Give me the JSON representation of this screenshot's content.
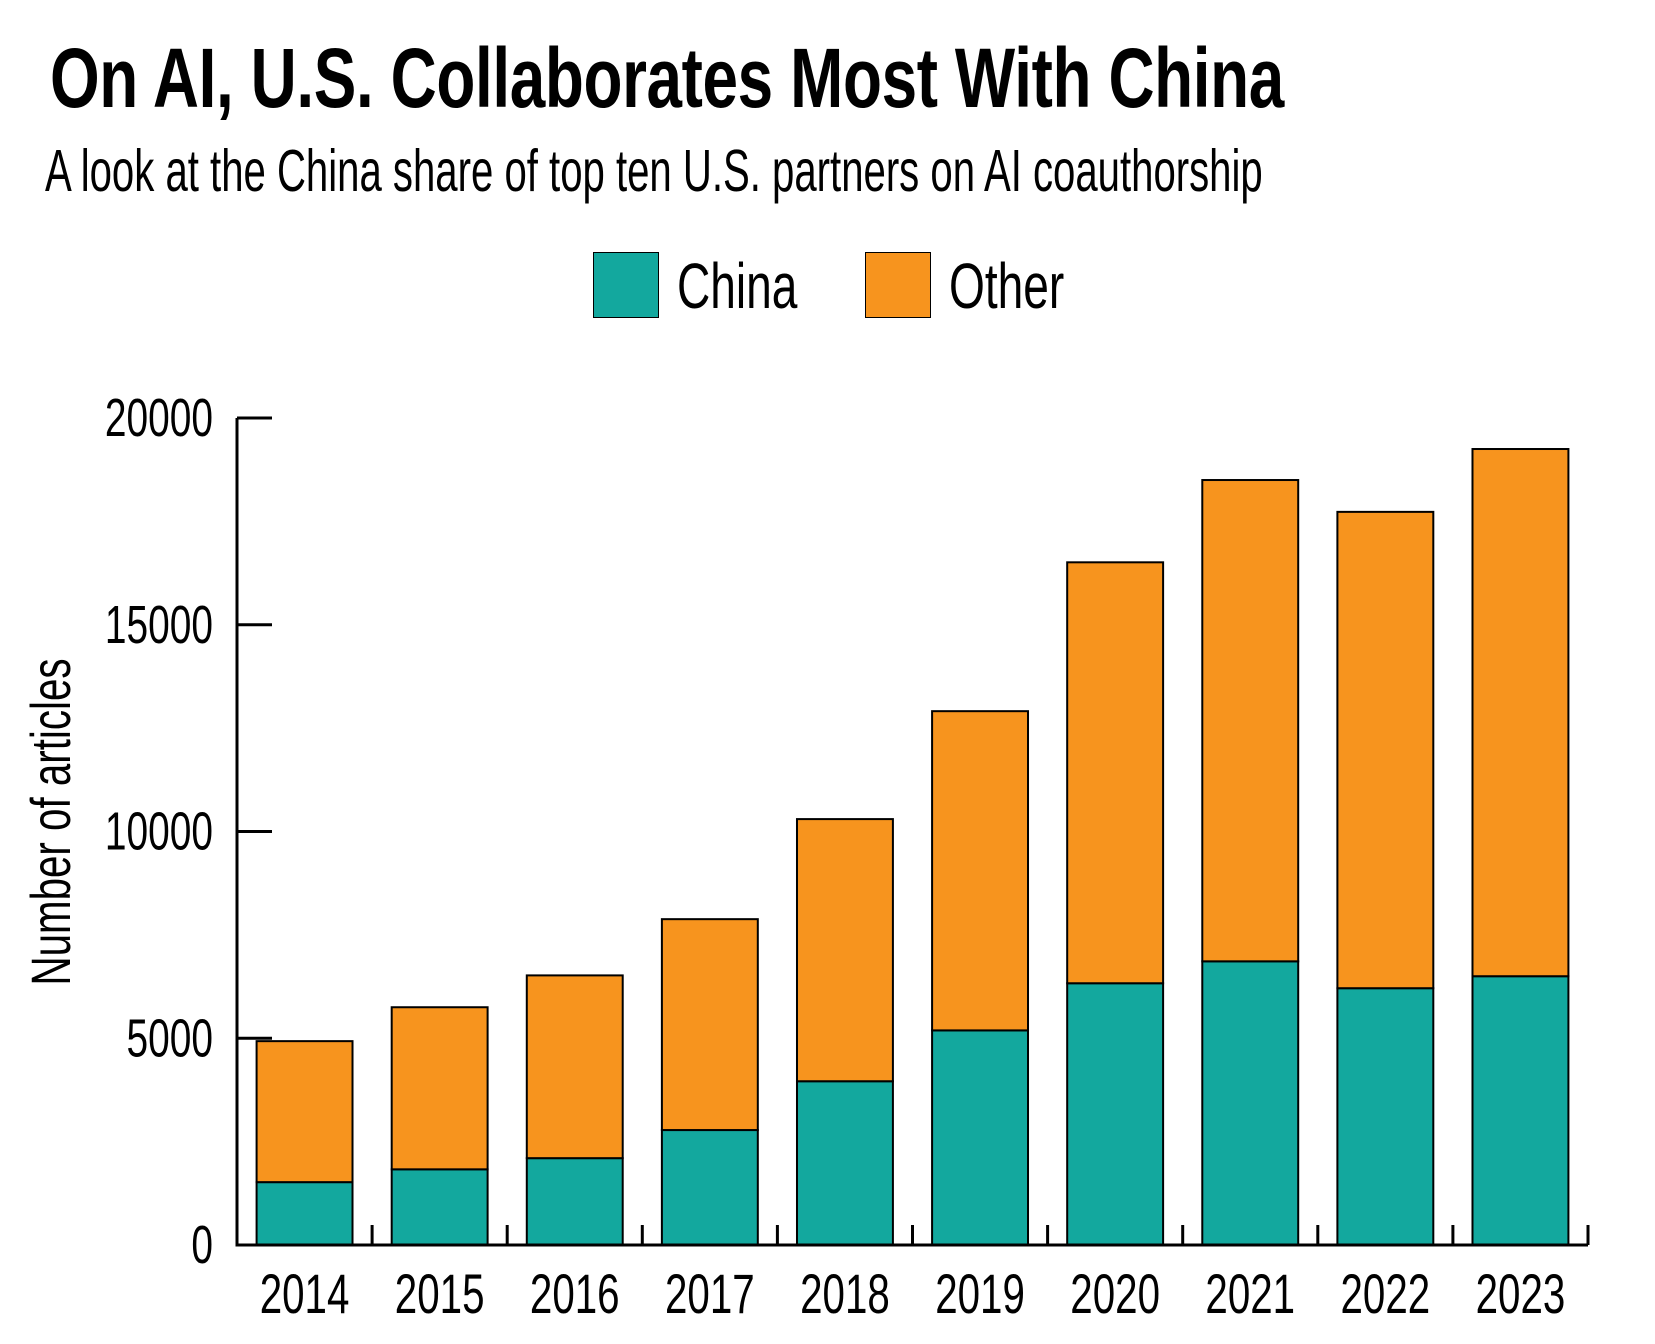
{
  "title": "On AI, U.S. Collaborates Most With China",
  "subtitle": "A look at the China share of top ten U.S. partners on AI coauthorship",
  "legend": [
    {
      "label": "China",
      "color": "#13A89E"
    },
    {
      "label": "Other",
      "color": "#F7941E"
    }
  ],
  "chart_data": {
    "type": "bar",
    "stacked": true,
    "title": "On AI, U.S. Collaborates Most With China",
    "subtitle": "A look at the China share of top ten U.S. partners on AI coauthorship",
    "xlabel": "",
    "ylabel": "Number of articles",
    "categories": [
      "2014",
      "2015",
      "2016",
      "2017",
      "2018",
      "2019",
      "2020",
      "2021",
      "2022",
      "2023"
    ],
    "series": [
      {
        "name": "China",
        "color": "#13A89E",
        "values": [
          1520,
          1830,
          2100,
          2780,
          3960,
          5190,
          6330,
          6860,
          6210,
          6500
        ]
      },
      {
        "name": "Other",
        "color": "#F7941E",
        "values": [
          3410,
          3920,
          4420,
          5100,
          6340,
          7720,
          10180,
          11640,
          11520,
          12750
        ]
      }
    ],
    "totals": [
      4930,
      5750,
      6520,
      7880,
      10300,
      12910,
      16510,
      18500,
      17730,
      19250
    ],
    "ylim": [
      0,
      20000
    ],
    "yticks": [
      0,
      5000,
      10000,
      15000,
      20000
    ],
    "ytick_labels": [
      "0",
      "5000",
      "10000",
      "15000",
      "20000"
    ],
    "grid": false,
    "legend_position": "top-center"
  }
}
